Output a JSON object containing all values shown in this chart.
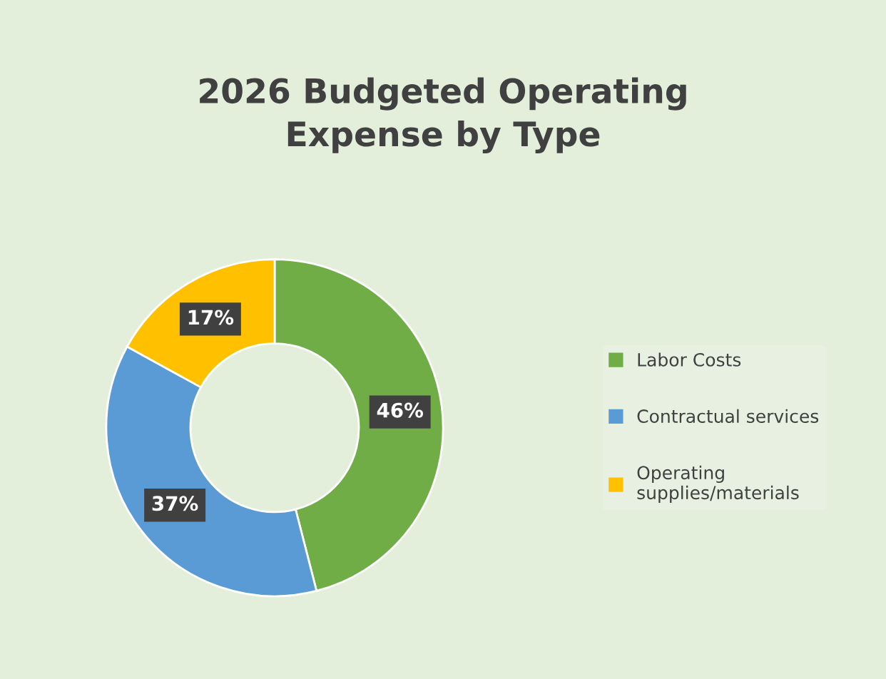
{
  "chart_data": {
    "type": "donut",
    "title": "2026 Budgeted Operating\nExpense by Type",
    "categories": [
      "Labor Costs",
      "Contractual services",
      "Operating\nsupplies/materials"
    ],
    "values": [
      46,
      37,
      17
    ],
    "colors": [
      "#70ad47",
      "#5b9bd5",
      "#ffc000"
    ],
    "value_labels": [
      "46%",
      "37%",
      "17%"
    ],
    "legend": "right"
  }
}
